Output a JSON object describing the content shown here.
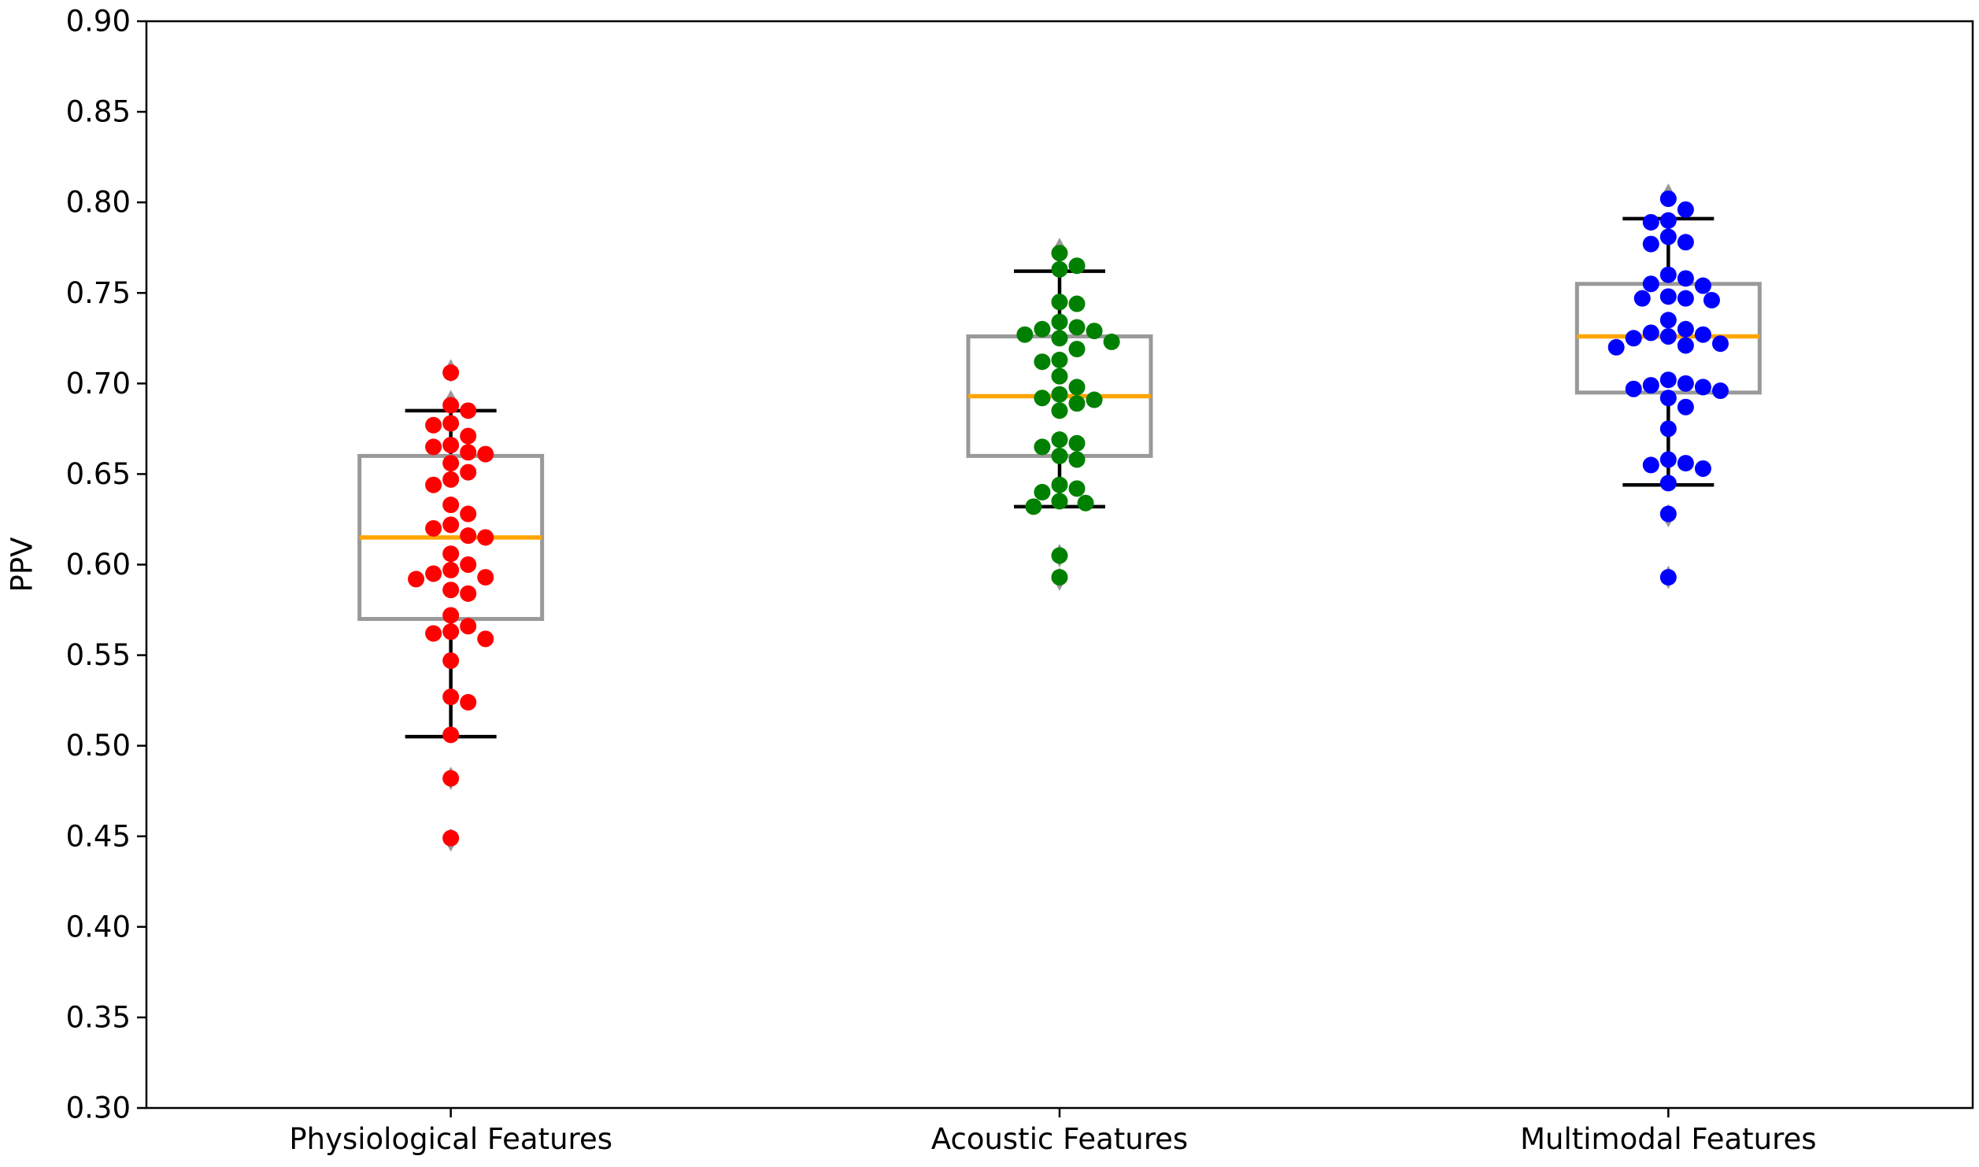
{
  "chart_data": {
    "type": "box",
    "title": "",
    "xlabel": "",
    "ylabel": "PPV",
    "ylim": [
      0.3,
      0.9
    ],
    "yticks": [
      "0.30",
      "0.35",
      "0.40",
      "0.45",
      "0.50",
      "0.55",
      "0.60",
      "0.65",
      "0.70",
      "0.75",
      "0.80",
      "0.85",
      "0.90"
    ],
    "categories": [
      "Physiological Features",
      "Acoustic Features",
      "Multimodal Features"
    ],
    "grid": false,
    "legend": "none",
    "colors": {
      "box_edge": "#999999",
      "median": "#ffa500",
      "whisker": "#000000",
      "flier": "#999999",
      "points": [
        "#ff0000",
        "#008000",
        "#0000ff"
      ]
    },
    "series": [
      {
        "q1": 0.57,
        "median": 0.615,
        "q3": 0.66,
        "whisker_low": 0.505,
        "whisker_high": 0.685,
        "fliers": [
          0.448,
          0.482,
          0.69,
          0.707
        ],
        "points": [
          0.706,
          0.688,
          0.685,
          0.678,
          0.677,
          0.671,
          0.666,
          0.665,
          0.662,
          0.661,
          0.656,
          0.651,
          0.647,
          0.644,
          0.633,
          0.628,
          0.622,
          0.62,
          0.616,
          0.615,
          0.606,
          0.6,
          0.597,
          0.595,
          0.593,
          0.592,
          0.586,
          0.584,
          0.572,
          0.566,
          0.563,
          0.562,
          0.559,
          0.547,
          0.527,
          0.524,
          0.506,
          0.482,
          0.449
        ]
      },
      {
        "q1": 0.66,
        "median": 0.693,
        "q3": 0.726,
        "whisker_low": 0.632,
        "whisker_high": 0.762,
        "fliers": [
          0.592,
          0.605,
          0.774
        ],
        "points": [
          0.772,
          0.765,
          0.763,
          0.745,
          0.744,
          0.734,
          0.731,
          0.73,
          0.729,
          0.727,
          0.725,
          0.723,
          0.719,
          0.713,
          0.712,
          0.704,
          0.698,
          0.694,
          0.692,
          0.691,
          0.689,
          0.685,
          0.669,
          0.667,
          0.665,
          0.66,
          0.658,
          0.644,
          0.642,
          0.64,
          0.635,
          0.634,
          0.632,
          0.605,
          0.593
        ]
      },
      {
        "q1": 0.695,
        "median": 0.726,
        "q3": 0.755,
        "whisker_low": 0.644,
        "whisker_high": 0.791,
        "fliers": [
          0.593,
          0.627,
          0.804
        ],
        "points": [
          0.802,
          0.796,
          0.79,
          0.789,
          0.781,
          0.778,
          0.777,
          0.76,
          0.758,
          0.755,
          0.754,
          0.748,
          0.747,
          0.747,
          0.746,
          0.735,
          0.73,
          0.728,
          0.727,
          0.726,
          0.725,
          0.722,
          0.721,
          0.72,
          0.702,
          0.7,
          0.699,
          0.698,
          0.697,
          0.696,
          0.692,
          0.687,
          0.675,
          0.658,
          0.656,
          0.655,
          0.653,
          0.645,
          0.628,
          0.593
        ]
      }
    ]
  }
}
